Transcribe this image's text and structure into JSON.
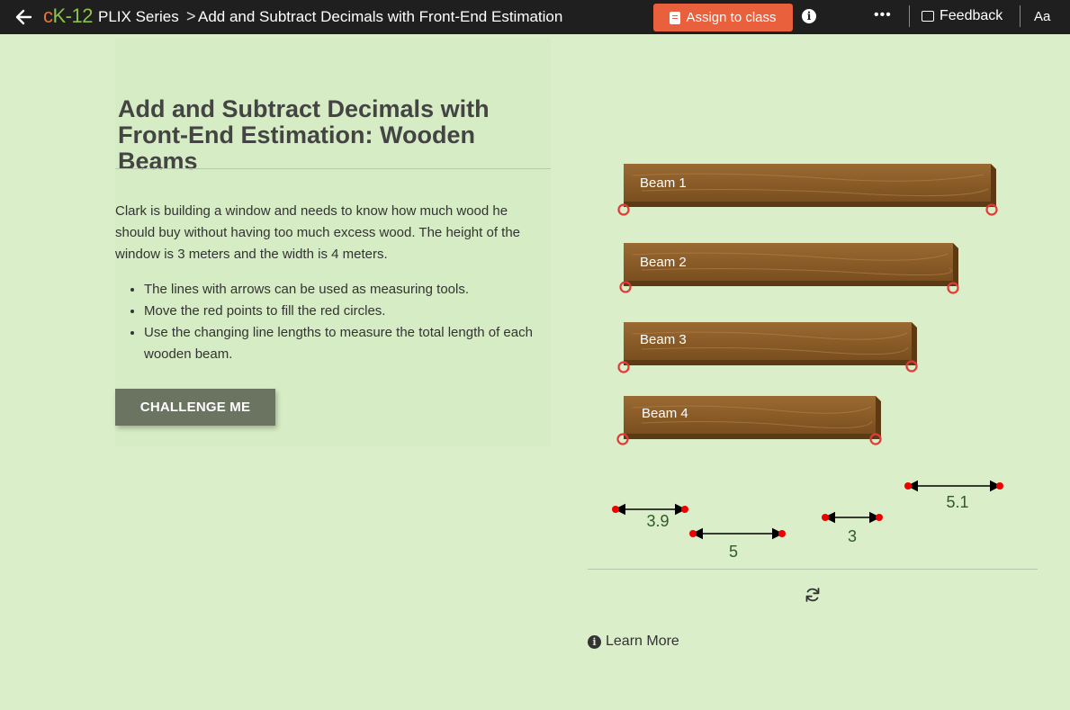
{
  "topbar": {
    "logo_c": "c",
    "logo_k": "K-12",
    "series": "PLIX Series",
    "separator": ">",
    "title": "Add and Subtract Decimals with Front-End Estimation",
    "assign_label": "Assign to class",
    "info_glyph": "i",
    "more_glyph": "•••",
    "feedback_label": "Feedback",
    "font_label": "Aa"
  },
  "content": {
    "title": "Add and Subtract Decimals with Front-End Estimation: Wooden Beams",
    "description": "Clark is building a window and needs to know how much wood he should buy without having too much excess wood. The height of the window is 3 meters and the width is 4 meters.",
    "bullets": [
      "The lines with arrows can be used as measuring tools.",
      "Move the red points to fill the red circles.",
      "Use the changing line lengths to measure the total length of each wooden beam."
    ],
    "challenge_label": "CHALLENGE ME"
  },
  "interactive": {
    "beams": [
      {
        "label": "Beam 1"
      },
      {
        "label": "Beam 2"
      },
      {
        "label": "Beam 3"
      },
      {
        "label": "Beam 4"
      }
    ],
    "measures": [
      {
        "value": "3.9"
      },
      {
        "value": "5"
      },
      {
        "value": "3"
      },
      {
        "value": "5.1"
      }
    ],
    "learn_more_label": "Learn More",
    "colors": {
      "wood": "#8a5a24",
      "wood_light": "#a2723a",
      "target": "#e53935",
      "measure_text": "#2f5a2a"
    }
  }
}
